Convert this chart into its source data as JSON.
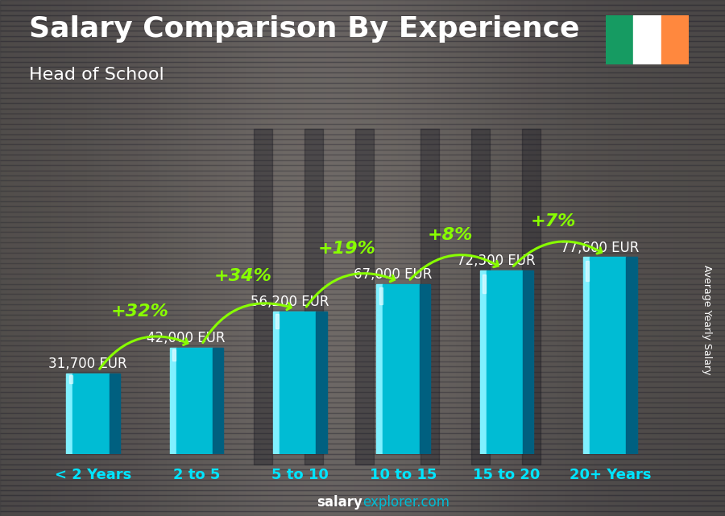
{
  "title": "Salary Comparison By Experience",
  "subtitle": "Head of School",
  "categories": [
    "< 2 Years",
    "2 to 5",
    "5 to 10",
    "10 to 15",
    "15 to 20",
    "20+ Years"
  ],
  "values": [
    31700,
    42000,
    56200,
    67000,
    72300,
    77600
  ],
  "bar_color_light": "#00e5ff",
  "bar_color_mid": "#00bcd4",
  "bar_color_dark": "#006080",
  "bar_color_highlight": "#80f0ff",
  "bg_color": "#5a5a6a",
  "text_color": "#ffffff",
  "ylabel": "Average Yearly Salary",
  "pct_labels": [
    "+32%",
    "+34%",
    "+19%",
    "+8%",
    "+7%"
  ],
  "salary_labels": [
    "31,700 EUR",
    "42,000 EUR",
    "56,200 EUR",
    "67,000 EUR",
    "72,300 EUR",
    "77,600 EUR"
  ],
  "arrow_color": "#88ff00",
  "pct_color": "#88ff00",
  "cat_color": "#00e5ff",
  "title_fontsize": 26,
  "subtitle_fontsize": 16,
  "cat_fontsize": 13,
  "salary_fontsize": 12,
  "pct_fontsize": 16,
  "ireland_flag_colors": [
    "#169b62",
    "#ffffff",
    "#ff883e"
  ],
  "footer_salary_color": "#ffffff",
  "footer_explorer_color": "#00bcd4"
}
